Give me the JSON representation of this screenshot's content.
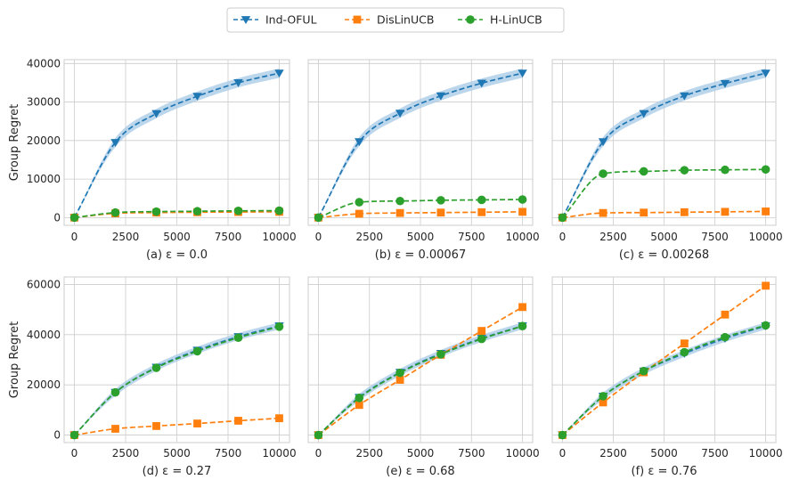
{
  "legend": {
    "placement": "top-center",
    "entries": [
      {
        "label": "Ind-OFUL",
        "color": "#1f77b4",
        "marker": "triangle-down"
      },
      {
        "label": "DisLinUCB",
        "color": "#ff7f0e",
        "marker": "square"
      },
      {
        "label": "H-LinUCB",
        "color": "#2ca02c",
        "marker": "circle"
      }
    ]
  },
  "colors": {
    "grid": "#cccccc",
    "ind_band": "#a6c8e6",
    "text": "#262626"
  },
  "chart_data": [
    {
      "type": "line",
      "caption": "(a) ε = 0.0",
      "ylabel": "Group Regret",
      "xlim": [
        -500,
        10500
      ],
      "ylim": [
        -2000,
        41000
      ],
      "xticks": [
        0,
        2500,
        5000,
        7500,
        10000
      ],
      "xtick_labels": [
        "0",
        "2500",
        "5000",
        "7500",
        "10000"
      ],
      "yticks": [
        0,
        10000,
        20000,
        30000,
        40000
      ],
      "ytick_labels": [
        "0",
        "10000",
        "20000",
        "30000",
        "40000"
      ],
      "x_markers": [
        0,
        2000,
        4000,
        6000,
        8000,
        10000
      ],
      "grid": true,
      "series": [
        {
          "name": "Ind-OFUL",
          "values": [
            0,
            19500,
            27000,
            31500,
            35000,
            37500
          ],
          "band": 1200
        },
        {
          "name": "DisLinUCB",
          "values": [
            0,
            1100,
            1300,
            1400,
            1450,
            1500
          ]
        },
        {
          "name": "H-LinUCB",
          "values": [
            0,
            1300,
            1550,
            1650,
            1750,
            1800
          ]
        }
      ]
    },
    {
      "type": "line",
      "caption": "(b) ε = 0.00067",
      "ylabel": "",
      "xlim": [
        -500,
        10500
      ],
      "ylim": [
        -2000,
        41000
      ],
      "xticks": [
        0,
        2500,
        5000,
        7500,
        10000
      ],
      "xtick_labels": [
        "0",
        "2500",
        "5000",
        "7500",
        "10000"
      ],
      "yticks": [
        0,
        10000,
        20000,
        30000,
        40000
      ],
      "ytick_labels": [],
      "x_markers": [
        0,
        2000,
        4000,
        6000,
        8000,
        10000
      ],
      "grid": true,
      "series": [
        {
          "name": "Ind-OFUL",
          "values": [
            0,
            19700,
            27100,
            31600,
            34900,
            37500
          ],
          "band": 1200
        },
        {
          "name": "DisLinUCB",
          "values": [
            0,
            1000,
            1200,
            1300,
            1400,
            1500
          ]
        },
        {
          "name": "H-LinUCB",
          "values": [
            0,
            4000,
            4300,
            4500,
            4600,
            4700
          ]
        }
      ]
    },
    {
      "type": "line",
      "caption": "(c) ε = 0.00268",
      "ylabel": "",
      "xlim": [
        -500,
        10500
      ],
      "ylim": [
        -2000,
        41000
      ],
      "xticks": [
        0,
        2500,
        5000,
        7500,
        10000
      ],
      "xtick_labels": [
        "0",
        "2500",
        "5000",
        "7500",
        "10000"
      ],
      "yticks": [
        0,
        10000,
        20000,
        30000,
        40000
      ],
      "ytick_labels": [],
      "x_markers": [
        0,
        2000,
        4000,
        6000,
        8000,
        10000
      ],
      "grid": true,
      "series": [
        {
          "name": "Ind-OFUL",
          "values": [
            0,
            19700,
            27000,
            31600,
            34800,
            37500
          ],
          "band": 1200
        },
        {
          "name": "DisLinUCB",
          "values": [
            0,
            1200,
            1300,
            1400,
            1500,
            1600
          ]
        },
        {
          "name": "H-LinUCB",
          "values": [
            0,
            11400,
            12000,
            12300,
            12400,
            12500
          ]
        }
      ]
    },
    {
      "type": "line",
      "caption": "(d) ε = 0.27",
      "ylabel": "Group Regret",
      "xlim": [
        -500,
        10500
      ],
      "ylim": [
        -3000,
        63000
      ],
      "xticks": [
        0,
        2500,
        5000,
        7500,
        10000
      ],
      "xtick_labels": [
        "0",
        "2500",
        "5000",
        "7500",
        "10000"
      ],
      "yticks": [
        0,
        20000,
        40000,
        60000
      ],
      "ytick_labels": [
        "0",
        "20000",
        "40000",
        "60000"
      ],
      "x_markers": [
        0,
        2000,
        4000,
        6000,
        8000,
        10000
      ],
      "grid": true,
      "series": [
        {
          "name": "Ind-OFUL",
          "values": [
            0,
            17000,
            27000,
            33800,
            39200,
            43500
          ],
          "band": 1400
        },
        {
          "name": "DisLinUCB",
          "values": [
            0,
            2500,
            3600,
            4600,
            5700,
            6700
          ]
        },
        {
          "name": "H-LinUCB",
          "values": [
            0,
            17000,
            26800,
            33400,
            38800,
            43200
          ]
        }
      ]
    },
    {
      "type": "line",
      "caption": "(e) ε = 0.68",
      "ylabel": "",
      "xlim": [
        -500,
        10500
      ],
      "ylim": [
        -3000,
        63000
      ],
      "xticks": [
        0,
        2500,
        5000,
        7500,
        10000
      ],
      "xtick_labels": [
        "0",
        "2500",
        "5000",
        "7500",
        "10000"
      ],
      "yticks": [
        0,
        20000,
        40000,
        60000
      ],
      "ytick_labels": [],
      "x_markers": [
        0,
        2000,
        4000,
        6000,
        8000,
        10000
      ],
      "grid": true,
      "series": [
        {
          "name": "Ind-OFUL",
          "values": [
            0,
            15000,
            25000,
            32500,
            38500,
            43500
          ],
          "band": 1400
        },
        {
          "name": "DisLinUCB",
          "values": [
            0,
            12000,
            22000,
            32000,
            41500,
            51000
          ]
        },
        {
          "name": "H-LinUCB",
          "values": [
            0,
            14800,
            24800,
            32200,
            38300,
            43400
          ]
        }
      ]
    },
    {
      "type": "line",
      "caption": "(f) ε = 0.76",
      "ylabel": "",
      "xlim": [
        -500,
        10500
      ],
      "ylim": [
        -3000,
        63000
      ],
      "xticks": [
        0,
        2500,
        5000,
        7500,
        10000
      ],
      "xtick_labels": [
        "0",
        "2500",
        "5000",
        "7500",
        "10000"
      ],
      "yticks": [
        0,
        20000,
        40000,
        60000
      ],
      "ytick_labels": [],
      "x_markers": [
        0,
        2000,
        4000,
        6000,
        8000,
        10000
      ],
      "grid": true,
      "series": [
        {
          "name": "Ind-OFUL",
          "values": [
            0,
            15500,
            25500,
            32500,
            38500,
            43500
          ],
          "band": 1400
        },
        {
          "name": "DisLinUCB",
          "values": [
            0,
            13000,
            25000,
            36500,
            48000,
            59500
          ]
        },
        {
          "name": "H-LinUCB",
          "values": [
            0,
            15500,
            25500,
            33000,
            39000,
            43700
          ]
        }
      ]
    }
  ]
}
